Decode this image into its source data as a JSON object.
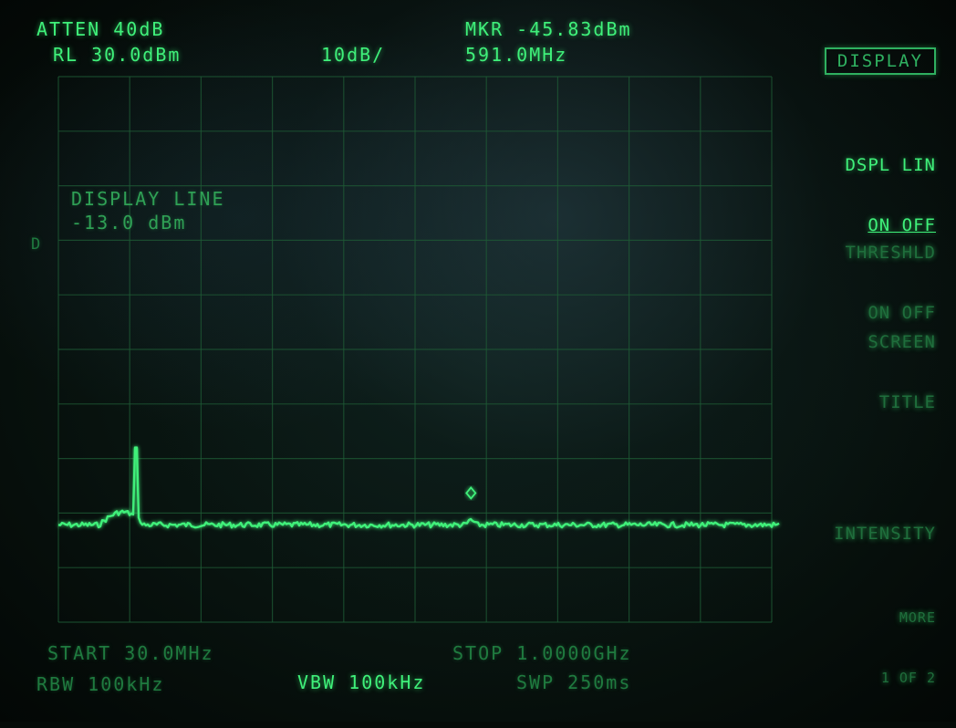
{
  "header": {
    "atten": "ATTEN 40dB",
    "ref_level": "RL 30.0dBm",
    "scale": "10dB/",
    "marker_level": "MKR -45.83dBm",
    "marker_freq": "591.0MHz"
  },
  "menu_title": "DISPLAY",
  "softkeys": [
    {
      "line1": "DSPL LIN",
      "line2": "ON OFF"
    },
    {
      "line1": "THRESHLD",
      "line2": "ON OFF"
    },
    {
      "line1": "SCREEN",
      "line2": "TITLE"
    },
    {
      "line1": "INTENSITY",
      "line2": ""
    },
    {
      "line1": "MORE",
      "line2": "1 OF 2"
    }
  ],
  "display_line": {
    "label": "DISPLAY LINE",
    "value": "-13.0 dBm"
  },
  "d_marker": "D",
  "footer": {
    "start": "START 30.0MHz",
    "stop": "STOP 1.0000GHz",
    "rbw": "RBW 100kHz",
    "vbw": "VBW 100kHz",
    "sweep": "SWP 250ms"
  },
  "trace": {
    "display_line_dbm": -13.0,
    "noise_floor_dbm": -52,
    "spike_freq_mhz": 135,
    "spike_dbm": -38,
    "marker_freq_mhz": 591.0,
    "marker_dbm": -45.83
  },
  "colors": {
    "phosphor": "#3ff07a",
    "grid": "#1e5a35"
  }
}
